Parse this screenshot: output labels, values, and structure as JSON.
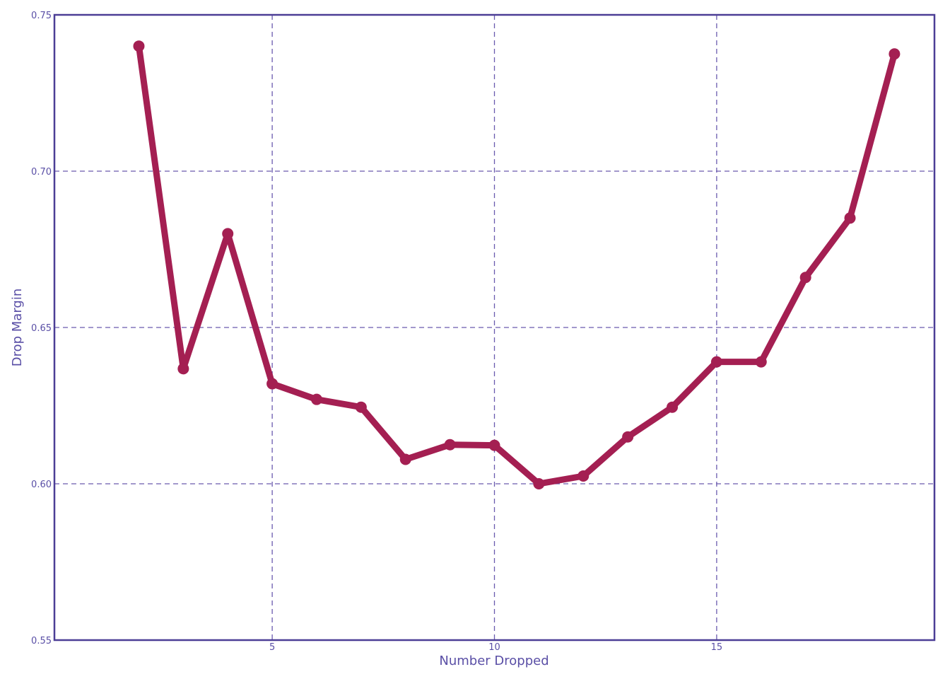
{
  "chart_data": {
    "type": "line",
    "title": "",
    "xlabel": "Number Dropped",
    "ylabel": "Drop Margin",
    "xlim": [
      0.1,
      19.9
    ],
    "ylim": [
      0.55,
      0.75
    ],
    "grid": true,
    "x_ticks": [
      5,
      10,
      15
    ],
    "x_tick_labels": [
      "5",
      "10",
      "15"
    ],
    "y_ticks": [
      0.55,
      0.6,
      0.65,
      0.7,
      0.75
    ],
    "y_tick_labels": [
      "0.55",
      "0.60",
      "0.65",
      "0.70",
      "0.75"
    ],
    "series": [
      {
        "x": [
          2,
          3,
          4,
          5,
          6,
          7,
          8,
          9,
          10,
          11,
          12,
          13,
          14,
          15,
          16,
          17,
          18,
          19
        ],
        "y": [
          0.74,
          0.6368,
          0.68,
          0.632,
          0.627,
          0.6245,
          0.6078,
          0.6125,
          0.6123,
          0.6,
          0.6025,
          0.615,
          0.6245,
          0.639,
          0.639,
          0.666,
          0.685,
          0.7375
        ]
      }
    ],
    "colors": {
      "line": "#a41f52",
      "axis": "#4c3e96",
      "grid": "#6a5aae",
      "text": "#5a4fa6"
    }
  }
}
